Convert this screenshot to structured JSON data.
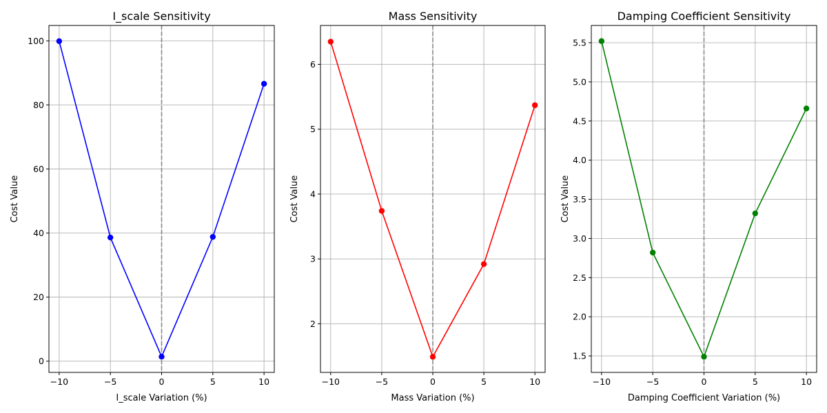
{
  "chart_data": [
    {
      "type": "line",
      "title": "I_scale Sensitivity",
      "xlabel": "I_scale Variation (%)",
      "ylabel": "Cost Value",
      "color": "#0000ff",
      "x": [
        -10,
        -5,
        0,
        5,
        10
      ],
      "values": [
        99.9,
        38.6,
        1.4,
        38.8,
        86.6
      ],
      "xlim": [
        -11,
        11
      ],
      "ylim": [
        -3.5,
        104.8
      ],
      "xticks": [
        -10,
        -5,
        0,
        5,
        10
      ],
      "yticks": [
        0,
        20,
        40,
        60,
        80,
        100
      ],
      "xtick_labels": [
        "−10",
        "−5",
        "0",
        "5",
        "10"
      ],
      "ytick_labels": [
        "0",
        "20",
        "40",
        "60",
        "80",
        "100"
      ],
      "reference_line_x": 0,
      "grid": true
    },
    {
      "type": "line",
      "title": "Mass Sensitivity",
      "xlabel": "Mass Variation (%)",
      "ylabel": "Cost Value",
      "color": "#ff0000",
      "x": [
        -10,
        -5,
        0,
        5,
        10
      ],
      "values": [
        6.35,
        3.74,
        1.49,
        2.92,
        5.37
      ],
      "xlim": [
        -11,
        11
      ],
      "ylim": [
        1.25,
        6.6
      ],
      "xticks": [
        -10,
        -5,
        0,
        5,
        10
      ],
      "yticks": [
        2,
        3,
        4,
        5,
        6
      ],
      "xtick_labels": [
        "−10",
        "−5",
        "0",
        "5",
        "10"
      ],
      "ytick_labels": [
        "2",
        "3",
        "4",
        "5",
        "6"
      ],
      "reference_line_x": 0,
      "grid": true
    },
    {
      "type": "line",
      "title": "Damping Coefficient Sensitivity",
      "xlabel": "Damping Coefficient Variation (%)",
      "ylabel": "Cost Value",
      "color": "#008000",
      "x": [
        -10,
        -5,
        0,
        5,
        10
      ],
      "values": [
        5.52,
        2.82,
        1.49,
        3.32,
        4.66
      ],
      "xlim": [
        -11,
        11
      ],
      "ylim": [
        1.29,
        5.72
      ],
      "xticks": [
        -10,
        -5,
        0,
        5,
        10
      ],
      "yticks": [
        1.5,
        2.0,
        2.5,
        3.0,
        3.5,
        4.0,
        4.5,
        5.0,
        5.5
      ],
      "xtick_labels": [
        "−10",
        "−5",
        "0",
        "5",
        "10"
      ],
      "ytick_labels": [
        "1.5",
        "2.0",
        "2.5",
        "3.0",
        "3.5",
        "4.0",
        "4.5",
        "5.0",
        "5.5"
      ],
      "reference_line_x": 0,
      "grid": true
    }
  ]
}
